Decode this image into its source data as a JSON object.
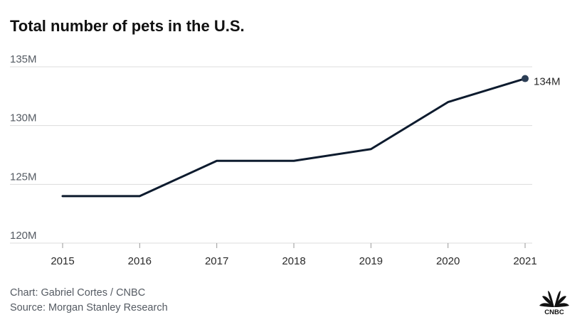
{
  "title": "Total number of pets in the U.S.",
  "credits": {
    "chart_by": "Chart: Gabriel Cortes / CNBC",
    "source": "Source: Morgan Stanley Research"
  },
  "logo": {
    "text": "CNBC",
    "icon": "cnbc-peacock-icon"
  },
  "colors": {
    "line": "#0d1b2e",
    "point": "#2c3e55",
    "grid": "#dcdcdc",
    "tick_text": "#555b63"
  },
  "chart_data": {
    "type": "line",
    "title": "Total number of pets in the U.S.",
    "categories": [
      "2015",
      "2016",
      "2017",
      "2018",
      "2019",
      "2020",
      "2021"
    ],
    "series": [
      {
        "values": [
          124,
          124,
          127,
          127,
          128,
          132,
          134
        ]
      }
    ],
    "yticks": [
      {
        "value": 120,
        "label": "120M"
      },
      {
        "value": 125,
        "label": "125M"
      },
      {
        "value": 130,
        "label": "130M"
      },
      {
        "value": 135,
        "label": "135M"
      }
    ],
    "ylim": [
      120,
      135
    ],
    "end_label": "134M",
    "grid": true,
    "legend": "none",
    "xlabel": "",
    "ylabel": ""
  }
}
